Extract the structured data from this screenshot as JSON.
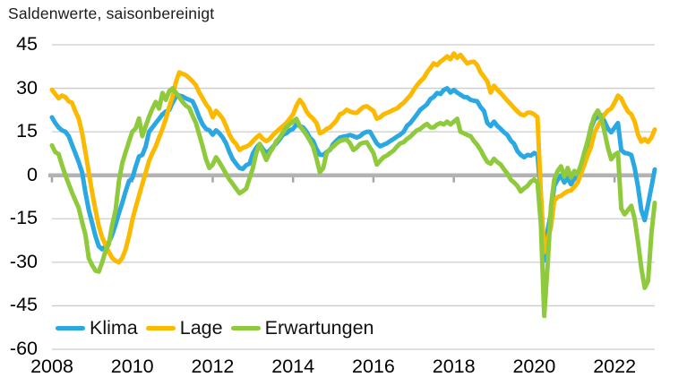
{
  "title": "Saldenwerte, saisonbereinigt",
  "legend": {
    "items": [
      {
        "label": "Klima"
      },
      {
        "label": "Lage"
      },
      {
        "label": "Erwartungen"
      }
    ]
  },
  "colors": {
    "klima_blue": "#29A8E1",
    "lage_yellow": "#FBBA00",
    "erwartungen_green": "#8FC93C",
    "gridline": "#CCCCCC",
    "zero_line": "#B3B3B3",
    "tick": "#A6A6A6",
    "text": "#000000"
  },
  "chart_data": {
    "type": "line",
    "title": "Saldenwerte, saisonbereinigt",
    "x_start_label": "2008",
    "x_end_label": "2023",
    "frequency": "monthly",
    "x_tick_labels": [
      "2008",
      "2010",
      "2012",
      "2014",
      "2016",
      "2018",
      "2020",
      "2022"
    ],
    "x_tick_month_index": [
      0,
      24,
      48,
      72,
      96,
      120,
      144,
      168
    ],
    "y_ticks": [
      45,
      30,
      15,
      0,
      -15,
      -30,
      -45,
      -60
    ],
    "ylim": [
      -60,
      45
    ],
    "grid": "horizontal",
    "zero_line_emphasized": true,
    "legend_position": "inside-bottom-left",
    "series": [
      {
        "name": "Klima",
        "color": "#29A8E1",
        "values": [
          20,
          18,
          16.5,
          15.5,
          15,
          13.5,
          10.5,
          7.5,
          4.5,
          1,
          -6,
          -12,
          -16.5,
          -21,
          -24.5,
          -25.5,
          -24.5,
          -23,
          -20.5,
          -17,
          -13,
          -9.5,
          -5.5,
          -2,
          -1,
          3,
          6.5,
          7,
          10,
          15,
          16.5,
          18,
          19.5,
          21,
          22,
          22.5,
          25,
          27,
          27.5,
          27.2,
          26.5,
          26,
          25.5,
          23,
          20,
          17.5,
          16,
          15.5,
          14,
          15.5,
          14.5,
          13,
          11,
          8,
          5.5,
          4,
          2.5,
          2.2,
          3.5,
          4,
          7.5,
          9.5,
          10.8,
          9,
          7.7,
          8.5,
          9.9,
          11,
          12.4,
          14,
          14.5,
          15.5,
          16,
          17.5,
          17,
          16.5,
          15,
          13,
          11.8,
          9,
          7.1,
          7,
          8,
          8.7,
          10.8,
          12,
          13,
          13.3,
          13.5,
          13.9,
          13.5,
          13,
          13.5,
          14.5,
          15,
          15,
          13,
          11,
          10,
          10.5,
          11,
          11.8,
          12.5,
          13.3,
          14,
          15,
          17,
          18,
          19.5,
          21,
          22.6,
          23.5,
          24.5,
          26.3,
          27,
          28.4,
          28,
          29.4,
          30,
          28.5,
          29.4,
          28.5,
          27.8,
          27,
          26.9,
          26,
          25.7,
          25.5,
          23.5,
          22.2,
          18,
          17,
          18.5,
          17,
          16,
          14.8,
          13.9,
          12,
          10.8,
          8.3,
          7,
          6.2,
          7,
          6.8,
          7.7,
          7.1,
          -6.8,
          -29.4,
          -19,
          -13,
          -3.7,
          -1.5,
          0,
          -2.5,
          -0.9,
          -3.1,
          -0.9,
          -1.5,
          1.5,
          5.6,
          11.4,
          16.4,
          19.2,
          20.1,
          20.8,
          18.6,
          16.1,
          14.8,
          16.4,
          18,
          8.7,
          7.7,
          7.5,
          7,
          2.5,
          -4,
          -12,
          -15.5,
          -10,
          -4,
          2
        ]
      },
      {
        "name": "Lage",
        "color": "#FBBA00",
        "values": [
          29.5,
          28,
          26.5,
          27.5,
          27,
          25.5,
          25,
          22,
          19.5,
          14.5,
          8,
          1,
          -6,
          -12,
          -17.5,
          -21.5,
          -24,
          -26.5,
          -28.5,
          -29.5,
          -30,
          -28.5,
          -25.5,
          -21,
          -15.5,
          -11,
          -7,
          -3,
          1,
          5,
          7.7,
          10,
          13,
          16,
          19.5,
          23.5,
          27,
          32,
          35.5,
          35,
          34.5,
          33.5,
          32.4,
          31,
          28.5,
          26.5,
          24.5,
          23,
          20,
          22.2,
          21,
          19.5,
          17,
          14,
          12,
          10.8,
          8.7,
          9.5,
          9.9,
          10.5,
          11.8,
          13,
          13.9,
          12.5,
          11.8,
          12.5,
          13.9,
          15,
          16,
          17,
          18,
          19.5,
          21,
          24,
          26,
          24.5,
          22,
          20.5,
          19.5,
          18,
          14.5,
          15,
          16,
          16.5,
          17.7,
          19,
          21,
          21.5,
          22.6,
          22,
          21.6,
          21.5,
          22.6,
          23.5,
          23.8,
          23,
          22.2,
          19.5,
          20,
          21,
          21.5,
          22,
          22.6,
          23,
          24.1,
          25,
          26.3,
          27.5,
          29.4,
          31,
          32.4,
          33.5,
          35.5,
          37,
          38.6,
          38,
          39.2,
          40,
          41,
          40,
          42,
          40.5,
          41.5,
          40,
          38.6,
          39,
          39.2,
          38,
          35.5,
          34,
          32.4,
          28.5,
          30.9,
          29.5,
          28.4,
          27,
          25.7,
          24.5,
          23.2,
          22,
          21,
          20.7,
          21.6,
          21.6,
          21,
          20,
          -6.8,
          -26.5,
          -22,
          -17.9,
          -8.7,
          -7.5,
          -7.1,
          -6.2,
          -5.5,
          -5.2,
          -4,
          -2.5,
          0.6,
          3.7,
          7,
          9.9,
          14.8,
          17,
          19.2,
          21,
          22.3,
          23,
          25,
          27.5,
          26.5,
          24,
          22,
          21,
          18.5,
          14,
          11.6,
          12.5,
          11.5,
          13,
          15.8
        ]
      },
      {
        "name": "Erwartungen",
        "color": "#8FC93C",
        "values": [
          10.3,
          8,
          7.3,
          3.5,
          0,
          -3,
          -6,
          -8.7,
          -11.3,
          -16.2,
          -20.5,
          -28.6,
          -31,
          -32.9,
          -33.2,
          -30,
          -26,
          -23.6,
          -17,
          -12.2,
          -2,
          4.2,
          8,
          11.6,
          15,
          16.2,
          19.6,
          13.5,
          17,
          20.2,
          23,
          25.3,
          23,
          28.4,
          26,
          29,
          30,
          28.5,
          27,
          25.3,
          24,
          23.2,
          20.5,
          18,
          14,
          9.9,
          5.5,
          2.5,
          3.7,
          6.2,
          4.5,
          2.5,
          0.5,
          -1.5,
          -3,
          -4.6,
          -6.2,
          -5.5,
          -4.6,
          -1,
          2.5,
          7.7,
          10.8,
          8,
          5.3,
          7.7,
          9.5,
          11.7,
          13,
          14.8,
          16.5,
          17.6,
          18.5,
          19.5,
          17,
          15.5,
          13.9,
          12,
          9.9,
          5.7,
          1.1,
          2.5,
          7.7,
          9,
          9.9,
          11,
          11.8,
          12.2,
          12.4,
          11,
          8.7,
          9.5,
          10.8,
          11.2,
          11.4,
          9.5,
          7.7,
          3.7,
          5,
          6.2,
          6.8,
          7.7,
          8.5,
          9.9,
          11,
          11.4,
          12.5,
          13.3,
          14.5,
          15.5,
          16,
          17,
          17.7,
          16.5,
          16.5,
          17.5,
          18,
          17.5,
          18.5,
          17.5,
          18.5,
          19.5,
          15,
          14.5,
          13.9,
          13.5,
          11.8,
          10.5,
          8.7,
          6.5,
          4.6,
          4,
          5.7,
          4.5,
          3.7,
          2,
          0.6,
          -1.5,
          -2.5,
          -3.7,
          -5.6,
          -4.5,
          -3.7,
          -2.2,
          -1.5,
          -2.5,
          -17,
          -48.5,
          -31,
          -10.8,
          -1.5,
          1.5,
          3.1,
          -0.5,
          2.5,
          -0.8,
          1.5,
          0.6,
          3.7,
          8,
          12,
          17,
          20.5,
          22.3,
          20,
          15,
          9.5,
          5.5,
          7,
          7.8,
          -11.5,
          -13.5,
          -12,
          -10.5,
          -15,
          -23,
          -32,
          -38.8,
          -36.5,
          -20,
          -9.5
        ]
      }
    ]
  }
}
